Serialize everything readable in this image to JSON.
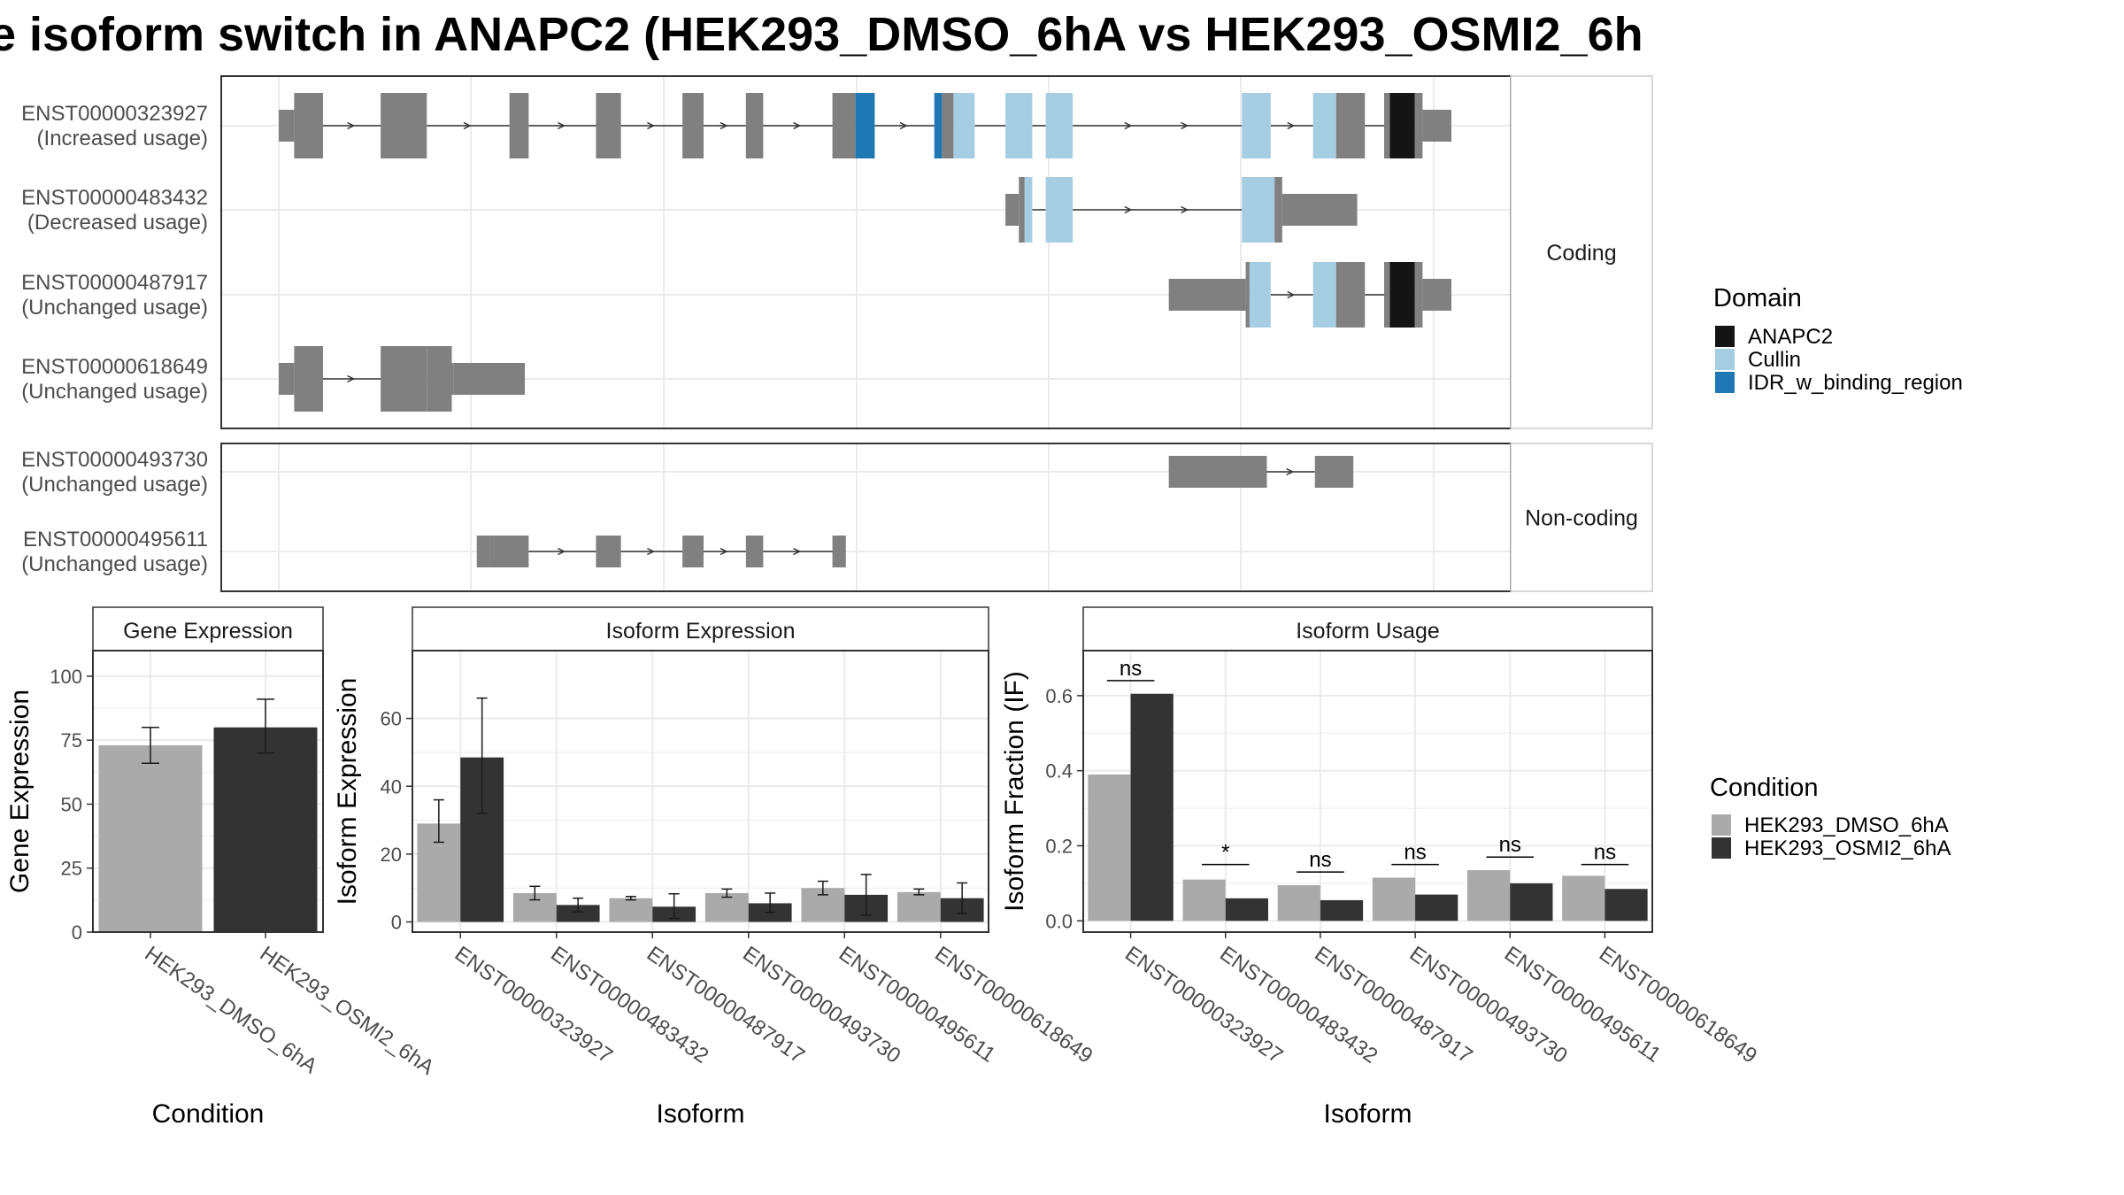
{
  "title": "e isoform switch in ANAPC2 (HEK293_DMSO_6hA vs HEK293_OSMI2_6h",
  "colors": {
    "exon": "#808080",
    "intron": "#333333",
    "ANAPC2": "#141414",
    "Cullin": "#a6cee3",
    "IDR_w_binding_region": "#1f78b4",
    "HEK293_DMSO_6hA": "#aaaaaa",
    "HEK293_OSMI2_6hA": "#333333",
    "grid": "#ebebeb",
    "panel_border": "#333333",
    "strip_bg": "#ffffff"
  },
  "structure": {
    "groups": [
      {
        "label": "Coding",
        "transcripts": [
          {
            "id": "ENST00000323927",
            "usage": "(Increased usage)",
            "exons": [
              [
                0,
                0.8,
                "u"
              ],
              [
                0.8,
                2.3,
                "c"
              ],
              [
                5.3,
                7.7,
                "c"
              ],
              [
                12,
                13,
                "c"
              ],
              [
                16.5,
                17.8,
                "c"
              ],
              [
                21,
                22.1,
                "c"
              ],
              [
                24.3,
                25.2,
                "c"
              ],
              [
                28.8,
                30,
                "c"
              ],
              [
                30,
                31,
                "c",
                "IDR_w_binding_region"
              ],
              [
                34.1,
                34.5,
                "c",
                "IDR_w_binding_region"
              ],
              [
                34.5,
                35.1,
                "c"
              ],
              [
                35.1,
                36.2,
                "c",
                "Cullin"
              ],
              [
                37.8,
                39.2,
                "c",
                "Cullin"
              ],
              [
                39.9,
                41.3,
                "c",
                "Cullin"
              ],
              [
                50.1,
                51.6,
                "c",
                "Cullin"
              ],
              [
                53.8,
                55,
                "c",
                "Cullin"
              ],
              [
                55,
                56.5,
                "c"
              ],
              [
                57.5,
                57.8,
                "c"
              ],
              [
                57.8,
                59.1,
                "c",
                "ANAPC2"
              ],
              [
                59.1,
                59.5,
                "c"
              ],
              [
                59.5,
                61,
                "u"
              ]
            ]
          },
          {
            "id": "ENST00000483432",
            "usage": "(Decreased usage)",
            "exons": [
              [
                37.8,
                38.5,
                "u"
              ],
              [
                38.5,
                38.8,
                "c"
              ],
              [
                38.8,
                39.2,
                "c",
                "Cullin"
              ],
              [
                39.9,
                41.3,
                "c",
                "Cullin"
              ],
              [
                50.1,
                51.8,
                "c",
                "Cullin"
              ],
              [
                51.8,
                52.2,
                "c"
              ],
              [
                52.2,
                56.1,
                "u"
              ]
            ]
          },
          {
            "id": "ENST00000487917",
            "usage": "(Unchanged usage)",
            "exons": [
              [
                46.3,
                50.3,
                "u"
              ],
              [
                50.3,
                50.5,
                "c"
              ],
              [
                50.5,
                51.6,
                "c",
                "Cullin"
              ],
              [
                53.8,
                55,
                "c",
                "Cullin"
              ],
              [
                55,
                56.5,
                "c"
              ],
              [
                57.5,
                57.8,
                "c"
              ],
              [
                57.8,
                59.1,
                "c",
                "ANAPC2"
              ],
              [
                59.1,
                59.5,
                "c"
              ],
              [
                59.5,
                61,
                "u"
              ]
            ]
          },
          {
            "id": "ENST00000618649",
            "usage": "(Unchanged usage)",
            "exons": [
              [
                0,
                0.8,
                "u"
              ],
              [
                0.8,
                2.3,
                "c"
              ],
              [
                5.3,
                7.7,
                "c"
              ],
              [
                7.7,
                9,
                "c"
              ],
              [
                9,
                9.1,
                "u"
              ],
              [
                9.1,
                12.8,
                "u"
              ]
            ]
          }
        ]
      },
      {
        "label": "Non-coding",
        "transcripts": [
          {
            "id": "ENST00000493730",
            "usage": "(Unchanged usage)",
            "exons": [
              [
                46.3,
                51.4,
                "u"
              ],
              [
                53.9,
                55.9,
                "u"
              ]
            ]
          },
          {
            "id": "ENST00000495611",
            "usage": "(Unchanged usage)",
            "exons": [
              [
                10.3,
                11,
                "u"
              ],
              [
                11,
                13,
                "u"
              ],
              [
                16.5,
                17.8,
                "u"
              ],
              [
                21,
                22.1,
                "u"
              ],
              [
                24.3,
                25.2,
                "u"
              ],
              [
                28.8,
                29.5,
                "u"
              ]
            ]
          }
        ]
      }
    ],
    "legend_title": "Domain",
    "legend_items": [
      "ANAPC2",
      "Cullin",
      "IDR_w_binding_region"
    ]
  },
  "chart_data": [
    {
      "type": "bar",
      "title": "Gene Expression",
      "xlabel": "Condition",
      "ylabel": "Gene Expression",
      "categories": [
        "HEK293_DMSO_6hA",
        "HEK293_OSMI2_6hA"
      ],
      "values": [
        73,
        80
      ],
      "errors": [
        [
          66,
          80
        ],
        [
          70,
          91
        ]
      ],
      "ylim": [
        0,
        110
      ],
      "yticks": [
        0,
        25,
        50,
        75,
        100
      ]
    },
    {
      "type": "bar",
      "title": "Isoform Expression",
      "xlabel": "Isoform",
      "ylabel": "Isoform Expression",
      "categories": [
        "ENST00000323927",
        "ENST00000483432",
        "ENST00000487917",
        "ENST00000493730",
        "ENST00000495611",
        "ENST00000618649"
      ],
      "series": [
        {
          "name": "HEK293_DMSO_6hA",
          "values": [
            29,
            8.5,
            7,
            8.5,
            10,
            8.8
          ],
          "errors": [
            [
              23.5,
              36
            ],
            [
              6.5,
              10.5
            ],
            [
              6.5,
              7.5
            ],
            [
              7.3,
              9.7
            ],
            [
              8,
              12
            ],
            [
              8,
              9.7
            ]
          ]
        },
        {
          "name": "HEK293_OSMI2_6hA",
          "values": [
            48.5,
            5,
            4.5,
            5.5,
            8,
            7
          ],
          "errors": [
            [
              32,
              66
            ],
            [
              3,
              7
            ],
            [
              1,
              8.3
            ],
            [
              2.8,
              8.5
            ],
            [
              2,
              14
            ],
            [
              2.5,
              11.5
            ]
          ]
        }
      ],
      "ylim": [
        -3,
        80
      ],
      "yticks": [
        0,
        20,
        40,
        60
      ]
    },
    {
      "type": "bar",
      "title": "Isoform Usage",
      "xlabel": "Isoform",
      "ylabel": "Isoform Fraction (IF)",
      "categories": [
        "ENST00000323927",
        "ENST00000483432",
        "ENST00000487917",
        "ENST00000493730",
        "ENST00000495611",
        "ENST00000618649"
      ],
      "series": [
        {
          "name": "HEK293_DMSO_6hA",
          "values": [
            0.39,
            0.11,
            0.095,
            0.115,
            0.135,
            0.12
          ]
        },
        {
          "name": "HEK293_OSMI2_6hA",
          "values": [
            0.605,
            0.06,
            0.055,
            0.07,
            0.1,
            0.085
          ]
        }
      ],
      "significance": [
        {
          "label": "ns",
          "y": 0.64
        },
        {
          "label": "*",
          "y": 0.15
        },
        {
          "label": "ns",
          "y": 0.13
        },
        {
          "label": "ns",
          "y": 0.15
        },
        {
          "label": "ns",
          "y": 0.17
        },
        {
          "label": "ns",
          "y": 0.15
        }
      ],
      "ylim": [
        -0.03,
        0.72
      ],
      "yticks": [
        0.0,
        0.2,
        0.4,
        0.6
      ],
      "yticklabels": [
        "0.0",
        "0.2",
        "0.4",
        "0.6"
      ]
    }
  ],
  "condition_legend": {
    "title": "Condition",
    "items": [
      "HEK293_DMSO_6hA",
      "HEK293_OSMI2_6hA"
    ]
  }
}
